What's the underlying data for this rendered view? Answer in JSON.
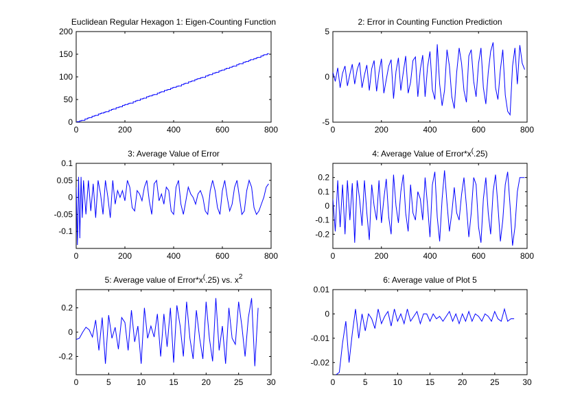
{
  "figure": {
    "line_color": "#0000ff",
    "axes_color": "#000000",
    "background": "#ffffff"
  },
  "chart_data": [
    {
      "type": "line",
      "title": "Euclidean Regular Hexagon 1: Eigen-Counting Function",
      "xlim": [
        0,
        800
      ],
      "ylim": [
        0,
        200
      ],
      "xticks": [
        0,
        200,
        400,
        600,
        800
      ],
      "yticks": [
        0,
        50,
        100,
        150,
        200
      ],
      "xlabel": "",
      "ylabel": "",
      "series": [
        {
          "kind": "staircase",
          "x_end": 790,
          "y_end": 152
        }
      ]
    },
    {
      "type": "line",
      "title": "2: Error in Counting Function Prediction",
      "xlim": [
        0,
        800
      ],
      "ylim": [
        -5,
        5
      ],
      "xticks": [
        0,
        200,
        400,
        600,
        800
      ],
      "yticks": [
        -5,
        0,
        5
      ],
      "xlabel": "",
      "ylabel": "",
      "series": [
        {
          "x": [
            0,
            10,
            20,
            30,
            40,
            50,
            60,
            70,
            80,
            90,
            100,
            110,
            120,
            130,
            140,
            150,
            160,
            170,
            180,
            190,
            200,
            210,
            220,
            230,
            240,
            250,
            260,
            270,
            280,
            290,
            300,
            310,
            320,
            330,
            340,
            350,
            360,
            370,
            380,
            390,
            400,
            410,
            420,
            430,
            440,
            450,
            460,
            470,
            480,
            490,
            500,
            510,
            520,
            530,
            540,
            550,
            560,
            570,
            580,
            590,
            600,
            610,
            620,
            630,
            640,
            650,
            660,
            670,
            680,
            690,
            700,
            710,
            720,
            730,
            740,
            750,
            760,
            770,
            780,
            790
          ],
          "values": [
            0.5,
            -0.5,
            1.0,
            -1.2,
            0.4,
            1.2,
            -1.0,
            0.3,
            1.4,
            -0.8,
            0.8,
            1.6,
            -1.2,
            0.2,
            1.3,
            -1.5,
            0.9,
            1.8,
            -1.6,
            0.5,
            2.0,
            -1.8,
            -0.3,
            1.2,
            1.9,
            -2.4,
            0.6,
            2.1,
            -1.5,
            0.5,
            2.3,
            -1.8,
            -0.6,
            1.8,
            2.2,
            -2.2,
            0.8,
            2.4,
            -2.2,
            1.1,
            2.8,
            -1.4,
            -2.5,
            3.6,
            -0.8,
            -3.2,
            -1.5,
            3.0,
            1.2,
            -2.2,
            -3.5,
            0.5,
            3.2,
            1.5,
            -1.5,
            -2.8,
            2.3,
            3.0,
            -0.5,
            -2.2,
            1.5,
            3.2,
            -1.2,
            -3.0,
            0.5,
            2.8,
            3.8,
            -1.2,
            -2.5,
            0.8,
            3.0,
            -2.0,
            -3.8,
            -4.2,
            1.2,
            3.2,
            -0.8,
            3.5,
            1.5,
            0.8
          ]
        }
      ]
    },
    {
      "type": "line",
      "title": "3: Average Value of Error",
      "xlim": [
        0,
        800
      ],
      "ylim": [
        -0.15,
        0.1
      ],
      "xticks": [
        0,
        200,
        400,
        600,
        800
      ],
      "yticks": [
        -0.1,
        -0.05,
        0,
        0.05,
        0.1
      ],
      "ytick_labels": [
        "-0.1",
        "-0.05",
        "0",
        "0.05",
        "0.1"
      ],
      "xlabel": "",
      "ylabel": "",
      "series": [
        {
          "x": [
            0,
            5,
            10,
            15,
            20,
            25,
            30,
            40,
            50,
            60,
            70,
            80,
            90,
            100,
            110,
            120,
            130,
            140,
            150,
            160,
            170,
            180,
            190,
            200,
            210,
            220,
            230,
            240,
            250,
            260,
            270,
            280,
            290,
            300,
            310,
            320,
            330,
            340,
            350,
            360,
            370,
            380,
            390,
            400,
            410,
            420,
            430,
            440,
            450,
            460,
            470,
            480,
            490,
            500,
            510,
            520,
            530,
            540,
            550,
            560,
            570,
            580,
            590,
            600,
            610,
            620,
            630,
            640,
            650,
            660,
            670,
            680,
            690,
            700,
            710,
            720,
            730,
            740,
            750,
            760,
            770,
            780,
            790
          ],
          "values": [
            0.03,
            -0.14,
            0.06,
            -0.12,
            0.06,
            -0.06,
            0.05,
            -0.05,
            0.05,
            -0.04,
            0.04,
            -0.06,
            0.05,
            0.01,
            -0.05,
            0.05,
            0.0,
            -0.06,
            0.05,
            -0.02,
            0.02,
            0.0,
            0.02,
            -0.01,
            0.05,
            0.03,
            -0.03,
            -0.04,
            0.02,
            0.01,
            -0.01,
            0.03,
            0.05,
            -0.01,
            -0.05,
            0.04,
            0.05,
            -0.01,
            0.01,
            -0.02,
            0.03,
            0.02,
            -0.04,
            -0.05,
            0.03,
            0.05,
            -0.02,
            -0.05,
            -0.01,
            0.03,
            0.01,
            0.0,
            -0.02,
            0.01,
            0.02,
            0.0,
            -0.04,
            -0.05,
            0.02,
            0.05,
            0.02,
            -0.03,
            -0.05,
            0.02,
            0.05,
            0.0,
            -0.04,
            -0.02,
            0.03,
            0.05,
            0.0,
            -0.05,
            -0.04,
            0.02,
            0.05,
            0.03,
            -0.03,
            -0.05,
            -0.04,
            -0.02,
            0.0,
            0.03,
            0.04
          ]
        }
      ]
    },
    {
      "type": "line",
      "title": "4: Average Value of Error*x",
      "title_superscript": "(.25)",
      "title_suffix": "",
      "xlim": [
        0,
        800
      ],
      "ylim": [
        -0.3,
        0.3
      ],
      "xticks": [
        0,
        200,
        400,
        600,
        800
      ],
      "yticks": [
        -0.2,
        -0.1,
        0,
        0.1,
        0.2
      ],
      "ytick_labels": [
        "-0.2",
        "-0.1",
        "0",
        "0.1",
        "0.2"
      ],
      "xlabel": "",
      "ylabel": "",
      "series": [
        {
          "x": [
            0,
            10,
            20,
            30,
            40,
            50,
            60,
            70,
            80,
            90,
            100,
            110,
            120,
            130,
            140,
            150,
            160,
            170,
            180,
            190,
            200,
            210,
            220,
            230,
            240,
            250,
            260,
            270,
            280,
            290,
            300,
            310,
            320,
            330,
            340,
            350,
            360,
            370,
            380,
            390,
            400,
            410,
            420,
            430,
            440,
            450,
            460,
            470,
            480,
            490,
            500,
            510,
            520,
            530,
            540,
            550,
            560,
            570,
            580,
            590,
            600,
            610,
            620,
            630,
            640,
            650,
            660,
            670,
            680,
            690,
            700,
            710,
            720,
            730,
            740,
            750,
            760,
            770,
            780,
            790
          ],
          "values": [
            0.05,
            -0.18,
            0.18,
            -0.15,
            0.15,
            -0.2,
            0.18,
            -0.1,
            0.16,
            -0.26,
            0.18,
            0.05,
            -0.14,
            0.18,
            -0.05,
            -0.24,
            0.15,
            0.0,
            -0.1,
            0.18,
            -0.12,
            0.05,
            0.19,
            -0.08,
            -0.2,
            0.22,
            0.0,
            -0.12,
            0.1,
            0.22,
            -0.05,
            -0.18,
            0.15,
            -0.05,
            -0.1,
            0.1,
            0.05,
            -0.1,
            0.2,
            0.0,
            -0.22,
            0.15,
            0.24,
            -0.08,
            -0.25,
            0.05,
            0.25,
            0.02,
            -0.18,
            -0.05,
            0.13,
            -0.05,
            -0.1,
            0.08,
            0.2,
            0.0,
            -0.22,
            -0.05,
            0.2,
            0.15,
            -0.15,
            -0.26,
            0.05,
            0.2,
            -0.05,
            -0.2,
            0.1,
            0.22,
            0.0,
            -0.25,
            -0.1,
            0.15,
            0.24,
            0.0,
            -0.28,
            -0.15,
            0.1,
            0.2,
            0.2,
            0.2
          ]
        }
      ]
    },
    {
      "type": "line",
      "title": "5: Average value of Error*x",
      "title_superscript": "(.25)",
      "title_suffix": " vs. x",
      "title_suffix_superscript": "2",
      "xlim": [
        0,
        30
      ],
      "ylim": [
        -0.35,
        0.35
      ],
      "xticks": [
        0,
        5,
        10,
        15,
        20,
        25,
        30
      ],
      "yticks": [
        -0.2,
        0,
        0.2
      ],
      "ytick_labels": [
        "-0.2",
        "0",
        "0.2"
      ],
      "xlabel": "",
      "ylabel": "",
      "series": [
        {
          "x": [
            0,
            0.5,
            1,
            1.5,
            2,
            2.5,
            3,
            3.5,
            4,
            4.5,
            5,
            5.5,
            6,
            6.5,
            7,
            7.5,
            8,
            8.5,
            9,
            9.5,
            10,
            10.5,
            11,
            11.5,
            12,
            12.5,
            13,
            13.5,
            14,
            14.5,
            15,
            15.5,
            16,
            16.5,
            17,
            17.5,
            18,
            18.5,
            19,
            19.5,
            20,
            20.5,
            21,
            21.5,
            22,
            22.5,
            23,
            23.5,
            24,
            24.5,
            25,
            25.5,
            26,
            26.5,
            27,
            27.5,
            28
          ],
          "values": [
            -0.06,
            -0.05,
            0.0,
            0.04,
            0.02,
            -0.04,
            0.1,
            -0.15,
            0.12,
            -0.26,
            0.14,
            -0.05,
            0.04,
            -0.14,
            0.12,
            0.08,
            -0.15,
            0.18,
            -0.08,
            0.05,
            -0.26,
            0.2,
            -0.05,
            0.05,
            -0.04,
            0.15,
            -0.2,
            0.15,
            -0.12,
            0.2,
            -0.25,
            0.22,
            0.05,
            -0.2,
            0.25,
            -0.05,
            -0.22,
            0.18,
            -0.05,
            -0.22,
            0.25,
            -0.05,
            -0.24,
            0.28,
            -0.15,
            0.05,
            -0.26,
            0.2,
            -0.05,
            -0.1,
            0.25,
            0.05,
            -0.2,
            0.12,
            0.28,
            -0.28,
            0.2
          ]
        }
      ]
    },
    {
      "type": "line",
      "title": "6: Average value of Plot 5",
      "xlim": [
        0,
        30
      ],
      "ylim": [
        -0.025,
        0.01
      ],
      "xticks": [
        0,
        5,
        10,
        15,
        20,
        25,
        30
      ],
      "yticks": [
        -0.02,
        -0.01,
        0,
        0.01
      ],
      "ytick_labels": [
        "-0.02",
        "-0.01",
        "0",
        "0.01"
      ],
      "xlabel": "",
      "ylabel": "",
      "series": [
        {
          "x": [
            0.2,
            0.5,
            1,
            1.5,
            2,
            2.5,
            3,
            3.5,
            4,
            4.5,
            5,
            5.5,
            6,
            6.5,
            7,
            7.5,
            8,
            8.5,
            9,
            9.5,
            10,
            10.5,
            11,
            11.5,
            12,
            12.5,
            13,
            13.5,
            14,
            14.5,
            15,
            15.5,
            16,
            16.5,
            17,
            17.5,
            18,
            18.5,
            19,
            19.5,
            20,
            20.5,
            21,
            21.5,
            22,
            22.5,
            23,
            23.5,
            24,
            24.5,
            25,
            25.5,
            26,
            26.5,
            27,
            27.5,
            28
          ],
          "values": [
            -0.026,
            -0.025,
            -0.024,
            -0.012,
            -0.003,
            -0.02,
            -0.008,
            0.002,
            -0.01,
            0.0,
            -0.007,
            0.0,
            -0.002,
            -0.006,
            0.002,
            -0.004,
            -0.001,
            0.001,
            -0.005,
            0.002,
            -0.003,
            0.0,
            -0.004,
            0.002,
            -0.003,
            -0.001,
            0.001,
            -0.004,
            0.0,
            0.0,
            -0.003,
            0.0,
            -0.002,
            -0.001,
            -0.003,
            -0.001,
            0.001,
            -0.003,
            0.0,
            -0.004,
            0.0,
            -0.003,
            0.001,
            -0.003,
            0.0,
            -0.001,
            -0.003,
            0.0,
            -0.001,
            -0.003,
            0.001,
            -0.002,
            -0.003,
            0.002,
            -0.003,
            -0.002,
            -0.002
          ]
        }
      ]
    }
  ]
}
